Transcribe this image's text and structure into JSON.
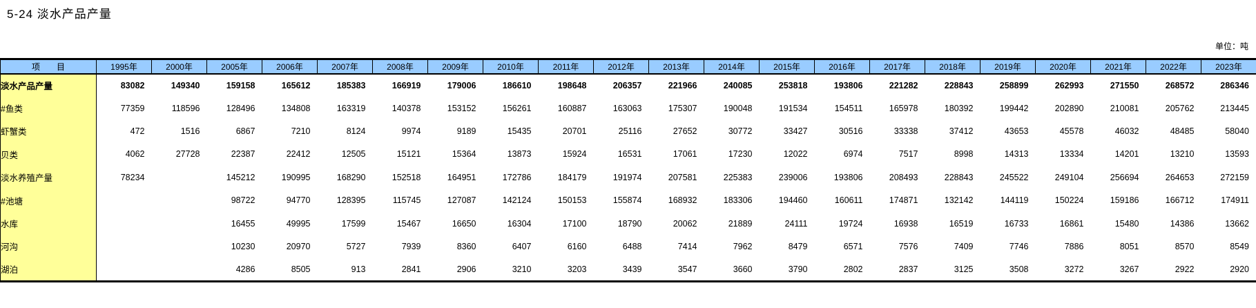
{
  "title": "5-24 淡水产品产量",
  "unit_label": "单位：吨",
  "colors": {
    "header_bg": "#99CCFF",
    "label_bg": "#FFFF99",
    "border": "#000000",
    "text": "#000000"
  },
  "table": {
    "item_header": "项　　目",
    "years": [
      "1995年",
      "2000年",
      "2005年",
      "2006年",
      "2007年",
      "2008年",
      "2009年",
      "2010年",
      "2011年",
      "2012年",
      "2013年",
      "2014年",
      "2015年",
      "2016年",
      "2017年",
      "2018年",
      "2019年",
      "2020年",
      "2021年",
      "2022年",
      "2023年"
    ],
    "rows": [
      {
        "label": "淡水产品产量",
        "indent": 0,
        "bold": true,
        "values": [
          "83082",
          "149340",
          "159158",
          "165612",
          "185383",
          "166919",
          "179006",
          "186610",
          "198648",
          "206357",
          "221966",
          "240085",
          "253818",
          "193806",
          "221282",
          "228843",
          "258899",
          "262993",
          "271550",
          "268572",
          "286346"
        ]
      },
      {
        "label": "#鱼类",
        "indent": 1,
        "bold": false,
        "values": [
          "77359",
          "118596",
          "128496",
          "134808",
          "163319",
          "140378",
          "153152",
          "156261",
          "160887",
          "163063",
          "175307",
          "190048",
          "191534",
          "154511",
          "165978",
          "180392",
          "199442",
          "202890",
          "210081",
          "205762",
          "213445"
        ]
      },
      {
        "label": "虾蟹类",
        "indent": 2,
        "bold": false,
        "values": [
          "472",
          "1516",
          "6867",
          "7210",
          "8124",
          "9974",
          "9189",
          "15435",
          "20701",
          "25116",
          "27652",
          "30772",
          "33427",
          "30516",
          "33338",
          "37412",
          "43653",
          "45578",
          "46032",
          "48485",
          "58040"
        ]
      },
      {
        "label": "贝类",
        "indent": 2,
        "bold": false,
        "values": [
          "4062",
          "27728",
          "22387",
          "22412",
          "12505",
          "15121",
          "15364",
          "13873",
          "15924",
          "16531",
          "17061",
          "17230",
          "12022",
          "6974",
          "7517",
          "8998",
          "14313",
          "13334",
          "14201",
          "13210",
          "13593"
        ]
      },
      {
        "label": "淡水养殖产量",
        "indent": 2,
        "bold": false,
        "values": [
          "78234",
          "",
          "145212",
          "190995",
          "168290",
          "152518",
          "164951",
          "172786",
          "184179",
          "191974",
          "207581",
          "225383",
          "239006",
          "193806",
          "208493",
          "228843",
          "245522",
          "249104",
          "256694",
          "264653",
          "272159"
        ]
      },
      {
        "label": "#池塘",
        "indent": 3,
        "bold": false,
        "values": [
          "",
          "",
          "98722",
          "94770",
          "128395",
          "115745",
          "127087",
          "142124",
          "150153",
          "155874",
          "168932",
          "183306",
          "194460",
          "160611",
          "174871",
          "132142",
          "144119",
          "150224",
          "159186",
          "166712",
          "174911"
        ]
      },
      {
        "label": "水库",
        "indent": 4,
        "bold": false,
        "values": [
          "",
          "",
          "16455",
          "49995",
          "17599",
          "15467",
          "16650",
          "16304",
          "17100",
          "18790",
          "20062",
          "21889",
          "24111",
          "19724",
          "16938",
          "16519",
          "16733",
          "16861",
          "15480",
          "14386",
          "13662"
        ]
      },
      {
        "label": "河沟",
        "indent": 4,
        "bold": false,
        "values": [
          "",
          "",
          "10230",
          "20970",
          "5727",
          "7939",
          "8360",
          "6407",
          "6160",
          "6488",
          "7414",
          "7962",
          "8479",
          "6571",
          "7576",
          "7409",
          "7746",
          "7886",
          "8051",
          "8570",
          "8549"
        ]
      },
      {
        "label": "湖泊",
        "indent": 4,
        "bold": false,
        "values": [
          "",
          "",
          "4286",
          "8505",
          "913",
          "2841",
          "2906",
          "3210",
          "3203",
          "3439",
          "3547",
          "3660",
          "3790",
          "2802",
          "2837",
          "3125",
          "3508",
          "3272",
          "3267",
          "2922",
          "2920"
        ]
      }
    ]
  }
}
